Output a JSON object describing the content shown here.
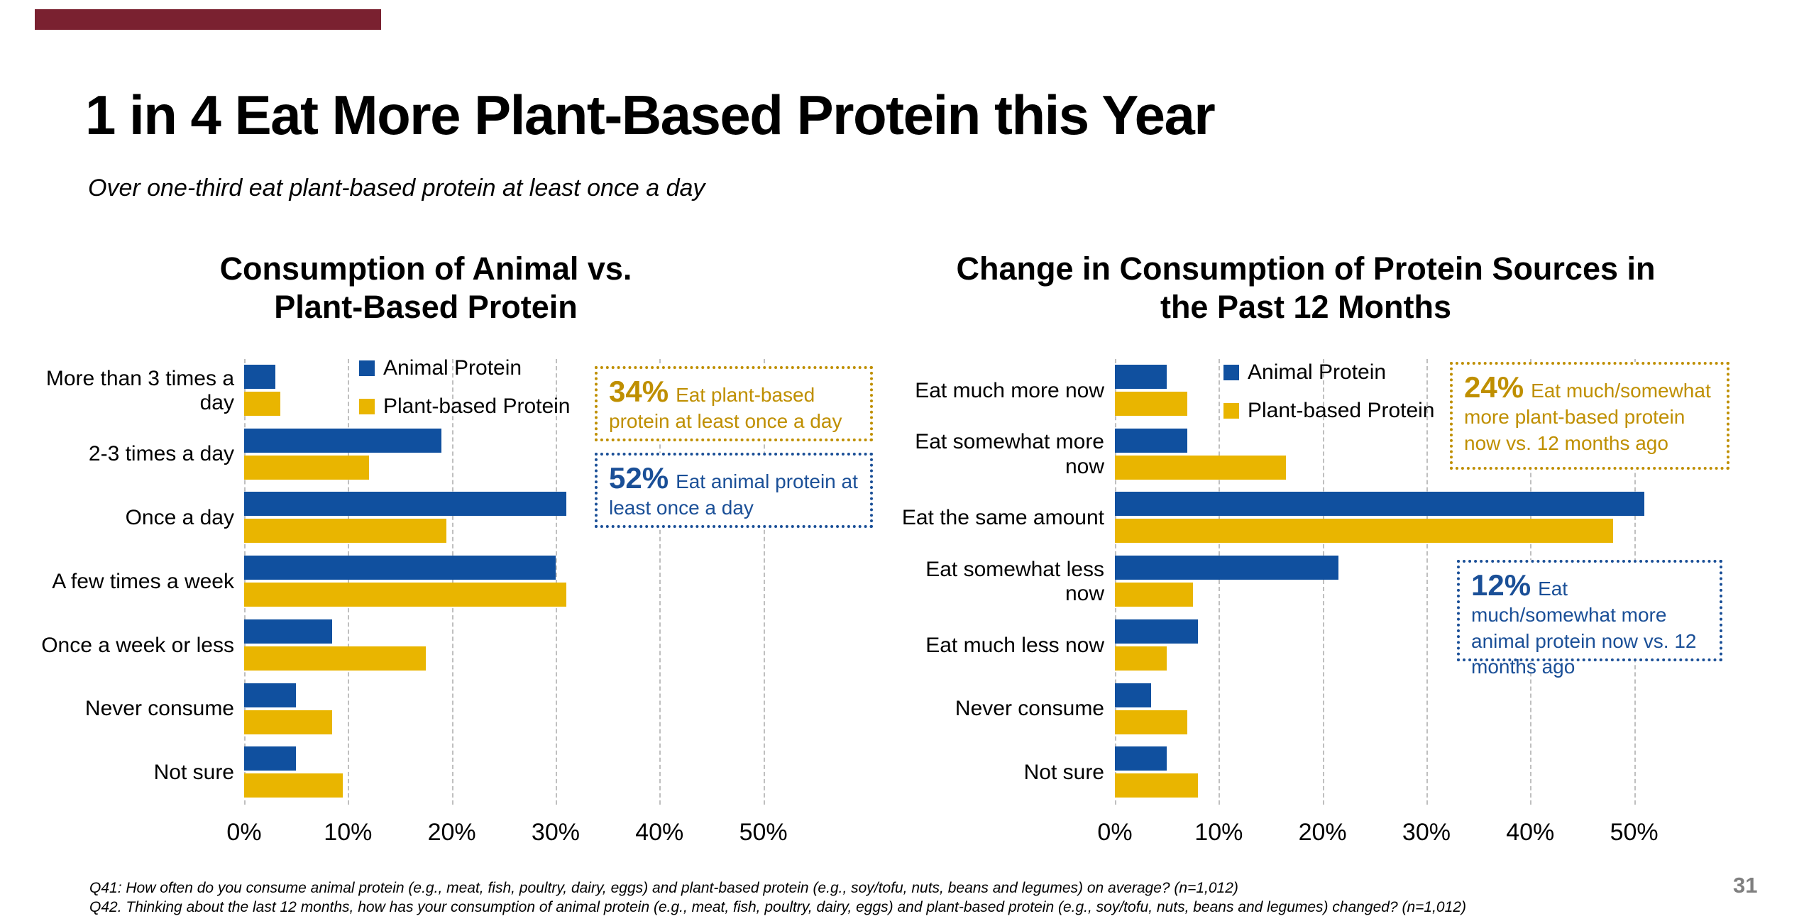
{
  "slide": {
    "title": "1 in 4 Eat More Plant-Based Protein this Year",
    "subtitle": "Over one-third eat plant-based protein at least once a day",
    "accent_bar_color": "#7A2130",
    "page_number": "31",
    "footnotes": [
      "Q41: How often do you consume animal protein (e.g., meat, fish, poultry, dairy, eggs) and plant-based protein (e.g., soy/tofu, nuts, beans and legumes) on average? (n=1,012)",
      "Q42. Thinking about the last 12 months, how has your consumption of animal protein (e.g., meat, fish, poultry, dairy, eggs) and plant-based protein (e.g., soy/tofu, nuts, beans and legumes) changed? (n=1,012)"
    ]
  },
  "colors": {
    "animal_protein_blue": "#10509F",
    "plant_protein_gold": "#E9B500",
    "callout_gold": "#BF8F00",
    "callout_blue": "#1A4F97",
    "gridline_gray": "#bfbfbf",
    "page_number_gray": "#7f7f7f"
  },
  "chart_data": [
    {
      "type": "bar",
      "orientation": "horizontal",
      "title": "Consumption of Animal vs. Plant-Based Protein",
      "title_lines": [
        "Consumption of Animal vs.",
        "Plant-Based Protein"
      ],
      "categories": [
        "More than 3 times a day",
        "2-3 times a day",
        "Once a day",
        "A few times a week",
        "Once a week or less",
        "Never consume",
        "Not sure"
      ],
      "series": [
        {
          "name": "Animal Protein",
          "color": "#10509F",
          "values": [
            3,
            19,
            31,
            30,
            8.5,
            5,
            5
          ]
        },
        {
          "name": "Plant-based Protein",
          "color": "#E9B500",
          "values": [
            3.5,
            12,
            19.5,
            31,
            17.5,
            8.5,
            9.5
          ]
        }
      ],
      "x_ticks": [
        "0%",
        "10%",
        "20%",
        "30%",
        "40%",
        "50%"
      ],
      "xlim": [
        0,
        52
      ],
      "grid": "vertical-dashed",
      "legend_position": "inside-top-right"
    },
    {
      "type": "bar",
      "orientation": "horizontal",
      "title": "Change in Consumption of Protein Sources in the Past 12 Months",
      "title_lines": [
        "Change in Consumption of Protein Sources in",
        "the Past 12 Months"
      ],
      "categories": [
        "Eat much more now",
        "Eat somewhat more now",
        "Eat the same amount",
        "Eat somewhat less now",
        "Eat much less now",
        "Never consume",
        "Not sure"
      ],
      "series": [
        {
          "name": "Animal Protein",
          "color": "#10509F",
          "values": [
            5,
            7,
            51,
            21.5,
            8,
            3.5,
            5
          ]
        },
        {
          "name": "Plant-based Protein",
          "color": "#E9B500",
          "values": [
            7,
            16.5,
            48,
            7.5,
            5,
            7,
            8
          ]
        }
      ],
      "x_ticks": [
        "0%",
        "10%",
        "20%",
        "30%",
        "40%",
        "50%"
      ],
      "xlim": [
        0,
        52
      ],
      "grid": "vertical-dashed",
      "legend_position": "inside-top-right"
    }
  ],
  "callouts": [
    {
      "value": "34%",
      "text": "Eat plant-based protein at least once a day",
      "color": "#BF8F00"
    },
    {
      "value": "52%",
      "text": "Eat animal protein at least once a day",
      "color": "#1A4F97"
    },
    {
      "value": "24%",
      "text": "Eat much/somewhat more plant-based protein now vs. 12 months ago",
      "color": "#BF8F00"
    },
    {
      "value": "12%",
      "text": "Eat much/somewhat more animal protein now vs. 12 months ago",
      "color": "#1A4F97"
    }
  ]
}
